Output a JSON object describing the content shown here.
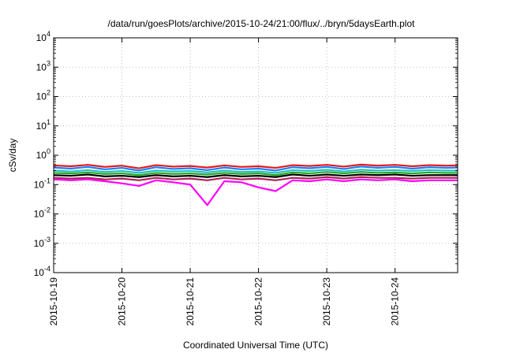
{
  "chart_data": {
    "type": "line",
    "title": "/data/run/goesPlots/archive/2015-10-24/21:00/flux/../bryn/5daysEarth.plot",
    "xlabel": "Coordinated Universal Time (UTC)",
    "ylabel": "cSv/day",
    "yscale": "log",
    "ylim": [
      0.0001,
      10000
    ],
    "xlim": [
      "2015-10-19",
      "2015-10-24T22:00"
    ],
    "grid": true,
    "x_ticks": [
      "2015-10-19",
      "2015-10-20",
      "2015-10-21",
      "2015-10-22",
      "2015-10-23",
      "2015-10-24"
    ],
    "y_ticks": [
      {
        "value": 0.0001,
        "base": "10",
        "exp": "-4"
      },
      {
        "value": 0.001,
        "base": "10",
        "exp": "-3"
      },
      {
        "value": 0.01,
        "base": "10",
        "exp": "-2"
      },
      {
        "value": 0.1,
        "base": "10",
        "exp": "-1"
      },
      {
        "value": 1,
        "base": "10",
        "exp": "0"
      },
      {
        "value": 10,
        "base": "10",
        "exp": "1"
      },
      {
        "value": 100,
        "base": "10",
        "exp": "2"
      },
      {
        "value": 1000,
        "base": "10",
        "exp": "3"
      },
      {
        "value": 10000,
        "base": "10",
        "exp": "4"
      }
    ],
    "x": [
      "2015-10-19T00:00",
      "2015-10-19T06:00",
      "2015-10-19T12:00",
      "2015-10-19T18:00",
      "2015-10-20T00:00",
      "2015-10-20T06:00",
      "2015-10-20T12:00",
      "2015-10-20T18:00",
      "2015-10-21T00:00",
      "2015-10-21T06:00",
      "2015-10-21T12:00",
      "2015-10-21T18:00",
      "2015-10-22T00:00",
      "2015-10-22T06:00",
      "2015-10-22T12:00",
      "2015-10-22T18:00",
      "2015-10-23T00:00",
      "2015-10-23T06:00",
      "2015-10-23T12:00",
      "2015-10-23T18:00",
      "2015-10-24T00:00",
      "2015-10-24T06:00",
      "2015-10-24T12:00",
      "2015-10-24T18:00",
      "2015-10-24T22:00"
    ],
    "series": [
      {
        "color": "#e41a1c",
        "values": [
          0.45,
          0.42,
          0.47,
          0.4,
          0.44,
          0.36,
          0.46,
          0.41,
          0.43,
          0.38,
          0.45,
          0.4,
          0.42,
          0.37,
          0.46,
          0.43,
          0.47,
          0.41,
          0.48,
          0.44,
          0.47,
          0.42,
          0.46,
          0.44,
          0.45
        ]
      },
      {
        "color": "#1e7fff",
        "values": [
          0.38,
          0.35,
          0.4,
          0.33,
          0.37,
          0.3,
          0.39,
          0.34,
          0.36,
          0.31,
          0.38,
          0.33,
          0.35,
          0.3,
          0.39,
          0.36,
          0.4,
          0.34,
          0.41,
          0.37,
          0.4,
          0.35,
          0.39,
          0.37,
          0.38
        ]
      },
      {
        "color": "#20c0c0",
        "values": [
          0.3,
          0.28,
          0.31,
          0.27,
          0.29,
          0.25,
          0.3,
          0.28,
          0.29,
          0.26,
          0.3,
          0.27,
          0.28,
          0.25,
          0.31,
          0.29,
          0.32,
          0.28,
          0.32,
          0.3,
          0.31,
          0.29,
          0.31,
          0.3,
          0.3
        ]
      },
      {
        "color": "#22aa22",
        "values": [
          0.25,
          0.24,
          0.26,
          0.23,
          0.24,
          0.21,
          0.25,
          0.23,
          0.24,
          0.22,
          0.25,
          0.23,
          0.24,
          0.21,
          0.26,
          0.24,
          0.27,
          0.24,
          0.27,
          0.25,
          0.26,
          0.24,
          0.26,
          0.25,
          0.25
        ]
      },
      {
        "color": "#000000",
        "values": [
          0.21,
          0.2,
          0.22,
          0.19,
          0.2,
          0.18,
          0.21,
          0.19,
          0.2,
          0.18,
          0.21,
          0.19,
          0.2,
          0.18,
          0.22,
          0.2,
          0.22,
          0.2,
          0.22,
          0.21,
          0.22,
          0.2,
          0.21,
          0.21,
          0.21
        ]
      },
      {
        "color": "#aa2255",
        "values": [
          0.17,
          0.16,
          0.17,
          0.15,
          0.16,
          0.14,
          0.17,
          0.15,
          0.16,
          0.14,
          0.17,
          0.15,
          0.16,
          0.14,
          0.17,
          0.16,
          0.18,
          0.16,
          0.18,
          0.17,
          0.17,
          0.16,
          0.17,
          0.17,
          0.17
        ]
      },
      {
        "color": "#ff00ff",
        "values": [
          0.15,
          0.14,
          0.15,
          0.13,
          0.11,
          0.09,
          0.14,
          0.12,
          0.1,
          0.02,
          0.13,
          0.12,
          0.08,
          0.06,
          0.14,
          0.13,
          0.15,
          0.13,
          0.15,
          0.14,
          0.15,
          0.13,
          0.14,
          0.14,
          0.14
        ]
      }
    ]
  }
}
